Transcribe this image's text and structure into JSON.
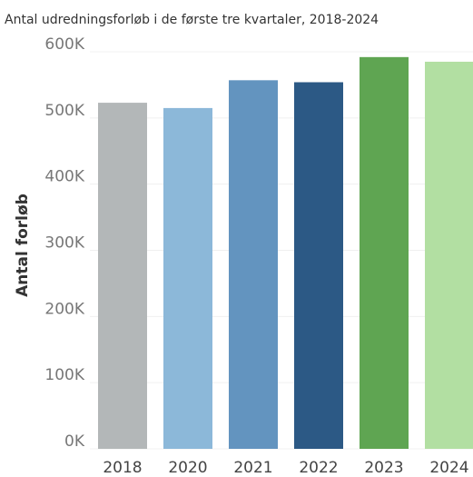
{
  "chart_data": {
    "type": "bar",
    "title": "Antal udredningsforløb i de første tre kvartaler, 2018-2024",
    "y_label": "Antal forløb",
    "categories": [
      "2018",
      "2020",
      "2021",
      "2022",
      "2023",
      "2024"
    ],
    "values": [
      523000,
      515000,
      557000,
      554000,
      592000,
      585000
    ],
    "colors": [
      "#b3b7b8",
      "#8cb8d9",
      "#6394bf",
      "#2c5985",
      "#5fa552",
      "#b2dfa2"
    ],
    "ylim": [
      0,
      600000
    ],
    "yticks": [
      {
        "value": 0,
        "label": "0K"
      },
      {
        "value": 100000,
        "label": "100K"
      },
      {
        "value": 200000,
        "label": "200K"
      },
      {
        "value": 300000,
        "label": "300K"
      },
      {
        "value": 400000,
        "label": "400K"
      },
      {
        "value": 500000,
        "label": "500K"
      },
      {
        "value": 600000,
        "label": "600K"
      }
    ],
    "grid": true
  }
}
